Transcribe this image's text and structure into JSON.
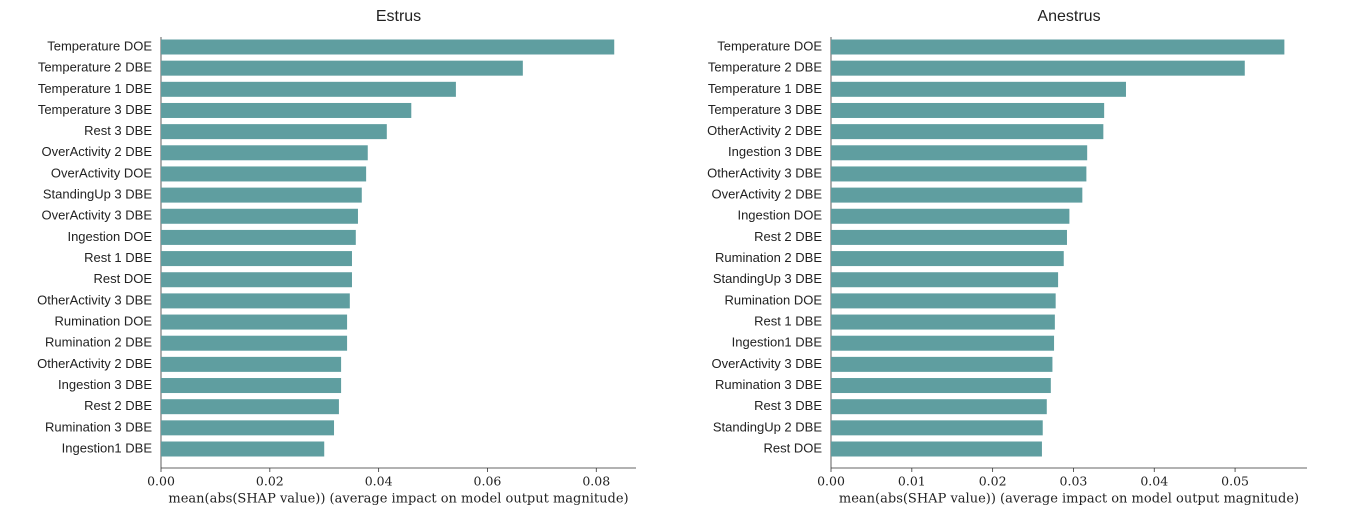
{
  "chart_data": [
    {
      "type": "bar",
      "orientation": "horizontal",
      "title": "Estrus",
      "xlabel": "mean(abs(SHAP value)) (average impact on model output magnitude)",
      "categories": [
        "Temperature DOE",
        "Temperature 2 DBE",
        "Temperature 1 DBE",
        "Temperature 3 DBE",
        "Rest 3 DBE",
        "OverActivity 2 DBE",
        "OverActivity DOE",
        "StandingUp 3 DBE",
        "OverActivity 3 DBE",
        "Ingestion DOE",
        "Rest 1 DBE",
        "Rest DOE",
        "OtherActivity 3 DBE",
        "Rumination DOE",
        "Rumination 2 DBE",
        "OtherActivity 2 DBE",
        "Ingestion 3 DBE",
        "Rest 2 DBE",
        "Rumination 3 DBE",
        "Ingestion1 DBE"
      ],
      "values": [
        0.0833,
        0.0665,
        0.0542,
        0.046,
        0.0415,
        0.038,
        0.0377,
        0.0369,
        0.0362,
        0.0358,
        0.0351,
        0.0351,
        0.0347,
        0.0342,
        0.0342,
        0.0331,
        0.0331,
        0.0327,
        0.0318,
        0.03
      ],
      "color": "#5f9ea0",
      "xlim": [
        0,
        0.0873
      ],
      "xticks": [
        {
          "value": 0,
          "label": "0.00"
        },
        {
          "value": 0.02,
          "label": "0.02"
        },
        {
          "value": 0.04,
          "label": "0.04"
        },
        {
          "value": 0.06,
          "label": "0.06"
        },
        {
          "value": 0.08,
          "label": "0.08"
        }
      ]
    },
    {
      "type": "bar",
      "orientation": "horizontal",
      "title": "Anestrus",
      "xlabel": "mean(abs(SHAP value)) (average impact on model output magnitude)",
      "categories": [
        "Temperature DOE",
        "Temperature 2 DBE",
        "Temperature 1 DBE",
        "Temperature 3 DBE",
        "OtherActivity 2 DBE",
        "Ingestion 3 DBE",
        "OtherActivity 3 DBE",
        "OverActivity 2 DBE",
        "Ingestion DOE",
        "Rest 2 DBE",
        "Rumination 2 DBE",
        "StandingUp 3 DBE",
        "Rumination DOE",
        "Rest 1 DBE",
        "Ingestion1 DBE",
        "OverActivity 3 DBE",
        "Rumination 3 DBE",
        "Rest 3 DBE",
        "StandingUp 2 DBE",
        "Rest DOE"
      ],
      "values": [
        0.0561,
        0.0512,
        0.0365,
        0.0338,
        0.0337,
        0.0317,
        0.0316,
        0.0311,
        0.0295,
        0.0292,
        0.0288,
        0.0281,
        0.0278,
        0.0277,
        0.0276,
        0.0274,
        0.0272,
        0.0267,
        0.0262,
        0.0261
      ],
      "color": "#5f9ea0",
      "xlim": [
        0,
        0.0589
      ],
      "xticks": [
        {
          "value": 0,
          "label": "0.00"
        },
        {
          "value": 0.01,
          "label": "0.01"
        },
        {
          "value": 0.02,
          "label": "0.02"
        },
        {
          "value": 0.03,
          "label": "0.03"
        },
        {
          "value": 0.04,
          "label": "0.04"
        },
        {
          "value": 0.05,
          "label": "0.05"
        }
      ]
    }
  ]
}
